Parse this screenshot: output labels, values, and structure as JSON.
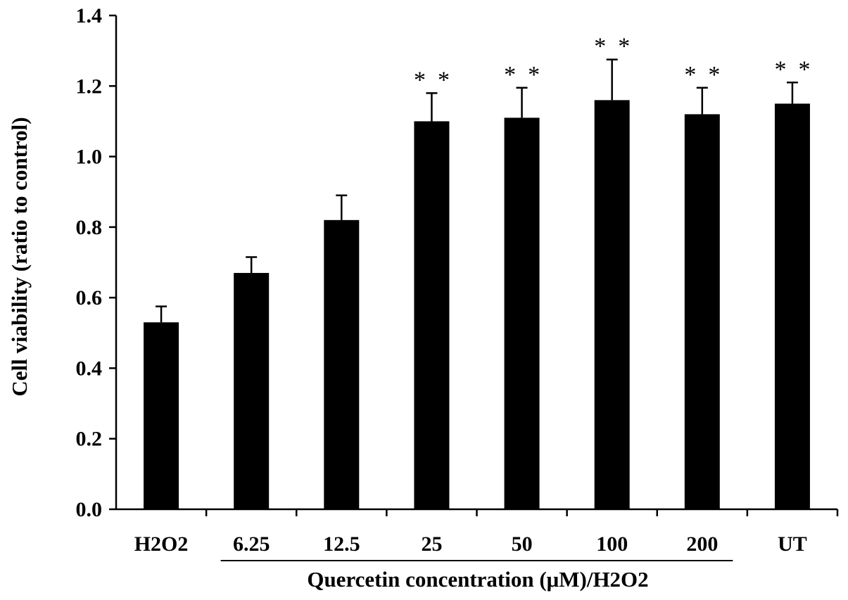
{
  "chart_data": {
    "type": "bar",
    "categories": [
      "H2O2",
      "6.25",
      "12.5",
      "25",
      "50",
      "100",
      "200",
      "UT"
    ],
    "values": [
      0.53,
      0.67,
      0.82,
      1.1,
      1.11,
      1.16,
      1.12,
      1.15
    ],
    "errors": [
      0.045,
      0.045,
      0.07,
      0.08,
      0.085,
      0.115,
      0.075,
      0.06
    ],
    "significance": [
      "",
      "",
      "",
      "* *",
      "* *",
      "* *",
      "* *",
      "* *"
    ],
    "ylabel": "Cell viability (ratio to control)",
    "xlabel": "Quercetin concentration (μM)/H2O2",
    "group_bracket": {
      "from": "6.25",
      "to": "200"
    },
    "ylim": [
      0,
      1.4
    ],
    "yticks": [
      "0.0",
      "0.2",
      "0.4",
      "0.6",
      "0.8",
      "1.0",
      "1.2",
      "1.4"
    ],
    "grid": false,
    "bar_color": "#000000"
  }
}
